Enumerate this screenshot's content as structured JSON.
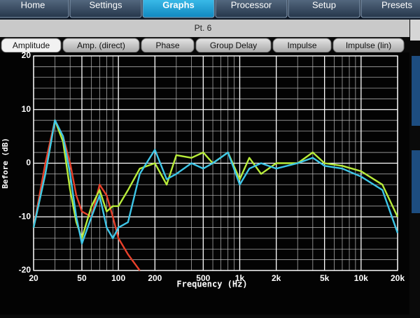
{
  "ui": {
    "top_tabs": [
      "Home",
      "Settings",
      "Graphs",
      "Processor",
      "Setup",
      "Presets"
    ],
    "active_tab": 2,
    "panel_title": "Pt. 6",
    "sub_tabs": [
      "Amplitude",
      "Amp. (direct)",
      "Phase",
      "Group Delay",
      "Impulse",
      "Impulse (lin)"
    ],
    "active_sub_tab": 0
  },
  "chart_data": {
    "type": "line",
    "xlabel": "Frequency (Hz)",
    "ylabel": "Before (dB)",
    "log_x": true,
    "grid": true,
    "x": [
      20,
      25,
      30,
      35,
      40,
      45,
      50,
      60,
      70,
      80,
      90,
      100,
      120,
      150,
      200,
      250,
      300,
      400,
      500,
      600,
      800,
      1000,
      1200,
      1500,
      2000,
      3000,
      4000,
      5000,
      7000,
      10000,
      15000,
      20000
    ],
    "series": [
      {
        "color": "#e8402a",
        "values": [
          -12,
          0,
          8,
          5,
          0,
          -6,
          -9,
          -10,
          -4,
          -6,
          -10,
          -14,
          -17,
          -20,
          null,
          null,
          null,
          null,
          null,
          null,
          null,
          null,
          null,
          null,
          null,
          null,
          null,
          null,
          null,
          null,
          null,
          null
        ]
      },
      {
        "color": "#b8ec3a",
        "values": [
          -12,
          -2,
          8,
          4,
          -5,
          -11,
          -14,
          -8,
          -5,
          -9,
          -8,
          -8,
          -5,
          -1,
          0,
          -4,
          1.5,
          1,
          2,
          0,
          2,
          -3,
          1,
          -2,
          0,
          0,
          2,
          0,
          -0.5,
          -1.5,
          -4,
          -10
        ]
      },
      {
        "color": "#3ec6e8",
        "values": [
          -12,
          -2,
          8,
          5,
          -2,
          -10,
          -15,
          -10,
          -6,
          -12,
          -14,
          -12,
          -11,
          -2,
          2.5,
          -3,
          -2,
          0,
          -1,
          0,
          2,
          -4,
          -1,
          0,
          -1,
          0,
          1,
          -0.5,
          -1,
          -2.5,
          -5,
          -13
        ]
      }
    ],
    "xlim": [
      20,
      20000
    ],
    "ylim": [
      -20,
      20
    ],
    "xticks": [
      20,
      50,
      100,
      200,
      500,
      {
        "value": 1000,
        "label": "1k"
      },
      {
        "value": 2000,
        "label": "2k"
      },
      {
        "value": 5000,
        "label": "5k"
      },
      {
        "value": 10000,
        "label": "10k"
      },
      {
        "value": 20000,
        "label": "20k"
      }
    ],
    "yticks": [
      -20,
      -10,
      0,
      10,
      20
    ],
    "xgrid": [
      30,
      40,
      60,
      70,
      80,
      90,
      300,
      400,
      600,
      700,
      800,
      900,
      3000,
      4000,
      6000,
      7000,
      8000,
      9000
    ],
    "ygrid": [
      -18,
      -16,
      -14,
      -12,
      -8,
      -6,
      -4,
      -2,
      2,
      4,
      6,
      8,
      12,
      14,
      16,
      18
    ]
  }
}
